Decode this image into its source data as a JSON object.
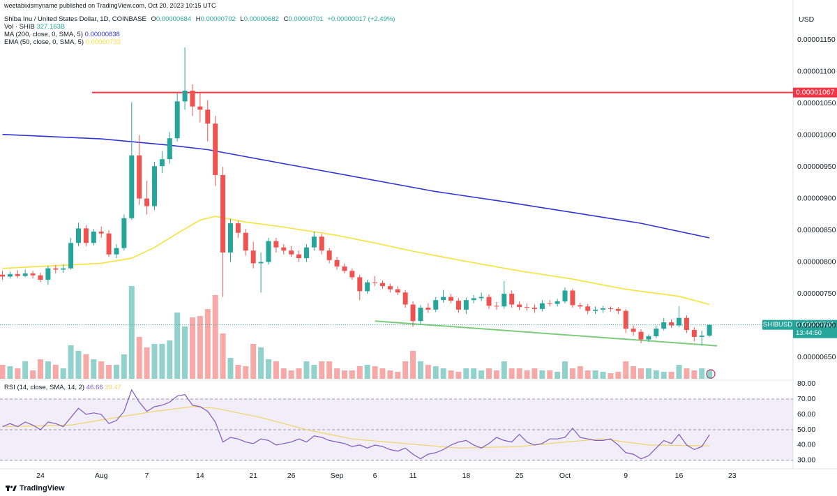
{
  "header": {
    "published": "weetabixismyname published on TradingView.com, Oct 20, 2023 10:15 UTC",
    "symbol": "Shiba Inu / United States Dollar, 1D, COINBASE",
    "ohlc_legend": [
      {
        "key": "O",
        "value": "0.00000684"
      },
      {
        "key": "H",
        "value": "0.00000702"
      },
      {
        "key": "L",
        "value": "0.00000682"
      },
      {
        "key": "C",
        "value": "0.00000701"
      }
    ],
    "change": "+0.00000017 (+2.49%)"
  },
  "chart_data": {
    "type": "candlestick",
    "y_unit": "USD",
    "up_color": "#26a69a",
    "down_color": "#ef5350",
    "xlim": [
      "2023-07-19",
      "2023-10-31"
    ],
    "xticks": [
      {
        "value": "2023-07-24",
        "label": "24"
      },
      {
        "value": "2023-08-01",
        "label": "Aug"
      },
      {
        "value": "2023-08-07",
        "label": "7"
      },
      {
        "value": "2023-08-14",
        "label": "14"
      },
      {
        "value": "2023-08-21",
        "label": "21"
      },
      {
        "value": "2023-08-26",
        "label": "26"
      },
      {
        "value": "2023-09-01",
        "label": "Sep"
      },
      {
        "value": "2023-09-06",
        "label": "6"
      },
      {
        "value": "2023-09-11",
        "label": "11"
      },
      {
        "value": "2023-09-18",
        "label": "18"
      },
      {
        "value": "2023-09-25",
        "label": "25"
      },
      {
        "value": "2023-10-01",
        "label": "Oct"
      },
      {
        "value": "2023-10-09",
        "label": "9"
      },
      {
        "value": "2023-10-16",
        "label": "16"
      },
      {
        "value": "2023-10-23",
        "label": "23"
      }
    ],
    "ylim": [
      6.16e-06,
      1.193e-05
    ],
    "yticks": [
      {
        "value": 6.5e-06,
        "label": "0.00000650"
      },
      {
        "value": 7e-06,
        "label": "0.00000700"
      },
      {
        "value": 7.5e-06,
        "label": "0.00000750"
      },
      {
        "value": 8e-06,
        "label": "0.00000800"
      },
      {
        "value": 8.5e-06,
        "label": "0.00000850"
      },
      {
        "value": 9e-06,
        "label": "0.00000900"
      },
      {
        "value": 9.5e-06,
        "label": "0.00000950"
      },
      {
        "value": 1e-05,
        "label": "0.00001000"
      },
      {
        "value": 1.05e-05,
        "label": "0.00001050"
      },
      {
        "value": 1.1e-05,
        "label": "0.00001100"
      },
      {
        "value": 1.15e-05,
        "label": "0.00001150"
      }
    ],
    "x": [
      "2023-07-19",
      "2023-07-20",
      "2023-07-21",
      "2023-07-22",
      "2023-07-23",
      "2023-07-24",
      "2023-07-25",
      "2023-07-26",
      "2023-07-27",
      "2023-07-28",
      "2023-07-29",
      "2023-07-30",
      "2023-07-31",
      "2023-08-01",
      "2023-08-02",
      "2023-08-03",
      "2023-08-04",
      "2023-08-05",
      "2023-08-06",
      "2023-08-07",
      "2023-08-08",
      "2023-08-09",
      "2023-08-10",
      "2023-08-11",
      "2023-08-12",
      "2023-08-13",
      "2023-08-14",
      "2023-08-15",
      "2023-08-16",
      "2023-08-17",
      "2023-08-18",
      "2023-08-19",
      "2023-08-20",
      "2023-08-21",
      "2023-08-22",
      "2023-08-23",
      "2023-08-24",
      "2023-08-25",
      "2023-08-26",
      "2023-08-27",
      "2023-08-28",
      "2023-08-29",
      "2023-08-30",
      "2023-08-31",
      "2023-09-01",
      "2023-09-02",
      "2023-09-03",
      "2023-09-04",
      "2023-09-05",
      "2023-09-06",
      "2023-09-07",
      "2023-09-08",
      "2023-09-09",
      "2023-09-10",
      "2023-09-11",
      "2023-09-12",
      "2023-09-13",
      "2023-09-14",
      "2023-09-15",
      "2023-09-16",
      "2023-09-17",
      "2023-09-18",
      "2023-09-19",
      "2023-09-20",
      "2023-09-21",
      "2023-09-22",
      "2023-09-23",
      "2023-09-24",
      "2023-09-25",
      "2023-09-26",
      "2023-09-27",
      "2023-09-28",
      "2023-09-29",
      "2023-09-30",
      "2023-10-01",
      "2023-10-02",
      "2023-10-03",
      "2023-10-04",
      "2023-10-05",
      "2023-10-06",
      "2023-10-07",
      "2023-10-08",
      "2023-10-09",
      "2023-10-10",
      "2023-10-11",
      "2023-10-12",
      "2023-10-13",
      "2023-10-14",
      "2023-10-15",
      "2023-10-16",
      "2023-10-17",
      "2023-10-18",
      "2023-10-19",
      "2023-10-20"
    ],
    "ohlc": [
      [
        7.8e-06,
        7.86e-06,
        7.72e-06,
        7.77e-06
      ],
      [
        7.77e-06,
        7.85e-06,
        7.74e-06,
        7.81e-06
      ],
      [
        7.81e-06,
        7.87e-06,
        7.75e-06,
        7.78e-06
      ],
      [
        7.78e-06,
        7.88e-06,
        7.76e-06,
        7.82e-06
      ],
      [
        7.82e-06,
        7.86e-06,
        7.74e-06,
        7.79e-06
      ],
      [
        7.79e-06,
        7.83e-06,
        7.68e-06,
        7.72e-06
      ],
      [
        7.72e-06,
        7.94e-06,
        7.64e-06,
        7.9e-06
      ],
      [
        7.9e-06,
        7.95e-06,
        7.82e-06,
        7.88e-06
      ],
      [
        7.88e-06,
        7.96e-06,
        7.83e-06,
        7.9e-06
      ],
      [
        7.9e-06,
        8.38e-06,
        7.88e-06,
        8.3e-06
      ],
      [
        8.3e-06,
        8.62e-06,
        8.25e-06,
        8.53e-06
      ],
      [
        8.53e-06,
        8.58e-06,
        8.25e-06,
        8.3e-06
      ],
      [
        8.3e-06,
        8.52e-06,
        8.26e-06,
        8.48e-06
      ],
      [
        8.48e-06,
        8.56e-06,
        8.38e-06,
        8.45e-06
      ],
      [
        8.45e-06,
        8.5e-06,
        8.08e-06,
        8.12e-06
      ],
      [
        8.12e-06,
        8.28e-06,
        8.06e-06,
        8.22e-06
      ],
      [
        8.22e-06,
        8.75e-06,
        8.18e-06,
        8.69e-06
      ],
      [
        8.69e-06,
        1.052e-05,
        8.66e-06,
        9.68e-06
      ],
      [
        9.68e-06,
        1e-05,
        8.9e-06,
        9e-06
      ],
      [
        9e-06,
        9.28e-06,
        8.75e-06,
        8.88e-06
      ],
      [
        8.88e-06,
        9.58e-06,
        8.82e-06,
        9.51e-06
      ],
      [
        9.51e-06,
        9.75e-06,
        9.4e-06,
        9.62e-06
      ],
      [
        9.62e-06,
        1.005e-05,
        9.55e-06,
        9.95e-06
      ],
      [
        9.95e-06,
        1.066e-05,
        9.9e-06,
        1.053e-05
      ],
      [
        1.053e-05,
        1.138e-05,
        1.04e-05,
        1.07e-05
      ],
      [
        1.07e-05,
        1.08e-05,
        1.03e-05,
        1.045e-05
      ],
      [
        1.045e-05,
        1.068e-05,
        1.02e-05,
        1.04e-05
      ],
      [
        1.04e-05,
        1.055e-05,
        9.9e-06,
        1.018e-05
      ],
      [
        1.018e-05,
        1.03e-05,
        9.2e-06,
        9.37e-06
      ],
      [
        9.37e-06,
        9.5e-06,
        7.45e-06,
        8.15e-06
      ],
      [
        8.15e-06,
        8.68e-06,
        8e-06,
        8.61e-06
      ],
      [
        8.61e-06,
        8.65e-06,
        8.38e-06,
        8.46e-06
      ],
      [
        8.46e-06,
        8.52e-06,
        8.1e-06,
        8.18e-06
      ],
      [
        8.18e-06,
        8.32e-06,
        7.9e-06,
        7.98e-06
      ],
      [
        7.98e-06,
        8.15e-06,
        7.52e-06,
        8e-06
      ],
      [
        8e-06,
        8.38e-06,
        7.96e-06,
        8.33e-06
      ],
      [
        8.33e-06,
        8.38e-06,
        8.15e-06,
        8.23e-06
      ],
      [
        8.23e-06,
        8.28e-06,
        8.12e-06,
        8.18e-06
      ],
      [
        8.18e-06,
        8.25e-06,
        8.08e-06,
        8.12e-06
      ],
      [
        8.12e-06,
        8.18e-06,
        8e-06,
        8.06e-06
      ],
      [
        8.06e-06,
        8.28e-06,
        8e-06,
        8.23e-06
      ],
      [
        8.23e-06,
        8.48e-06,
        8.18e-06,
        8.4e-06
      ],
      [
        8.4e-06,
        8.44e-06,
        8.12e-06,
        8.18e-06
      ],
      [
        8.18e-06,
        8.22e-06,
        7.98e-06,
        8.03e-06
      ],
      [
        8.03e-06,
        8.08e-06,
        7.88e-06,
        7.93e-06
      ],
      [
        7.93e-06,
        7.98e-06,
        7.82e-06,
        7.86e-06
      ],
      [
        7.86e-06,
        7.9e-06,
        7.72e-06,
        7.76e-06
      ],
      [
        7.76e-06,
        7.8e-06,
        7.4e-06,
        7.54e-06
      ],
      [
        7.54e-06,
        7.72e-06,
        7.5e-06,
        7.68e-06
      ],
      [
        7.68e-06,
        7.78e-06,
        7.62e-06,
        7.67e-06
      ],
      [
        7.67e-06,
        7.71e-06,
        7.58e-06,
        7.62e-06
      ],
      [
        7.62e-06,
        7.66e-06,
        7.52e-06,
        7.57e-06
      ],
      [
        7.57e-06,
        7.62e-06,
        7.48e-06,
        7.52e-06
      ],
      [
        7.52e-06,
        7.56e-06,
        7.28e-06,
        7.33e-06
      ],
      [
        7.33e-06,
        7.38e-06,
        6.98e-06,
        7.07e-06
      ],
      [
        7.07e-06,
        7.32e-06,
        7.03e-06,
        7.28e-06
      ],
      [
        7.28e-06,
        7.35e-06,
        7.2e-06,
        7.25e-06
      ],
      [
        7.25e-06,
        7.45e-06,
        7.21e-06,
        7.4e-06
      ],
      [
        7.4e-06,
        7.56e-06,
        7.36e-06,
        7.45e-06
      ],
      [
        7.45e-06,
        7.5e-06,
        7.35e-06,
        7.39e-06
      ],
      [
        7.39e-06,
        7.43e-06,
        7.2e-06,
        7.25e-06
      ],
      [
        7.25e-06,
        7.44e-06,
        7.18e-06,
        7.4e-06
      ],
      [
        7.4e-06,
        7.48e-06,
        7.35e-06,
        7.43e-06
      ],
      [
        7.43e-06,
        7.52e-06,
        7.38e-06,
        7.45e-06
      ],
      [
        7.45e-06,
        7.49e-06,
        7.26e-06,
        7.31e-06
      ],
      [
        7.31e-06,
        7.37e-06,
        7.25e-06,
        7.3e-06
      ],
      [
        7.3e-06,
        7.7e-06,
        7.26e-06,
        7.5e-06
      ],
      [
        7.5e-06,
        7.55e-06,
        7.28e-06,
        7.33e-06
      ],
      [
        7.33e-06,
        7.38e-06,
        7.24e-06,
        7.29e-06
      ],
      [
        7.29e-06,
        7.35e-06,
        7.23e-06,
        7.28e-06
      ],
      [
        7.28e-06,
        7.33e-06,
        7.2e-06,
        7.26e-06
      ],
      [
        7.26e-06,
        7.4e-06,
        7.22e-06,
        7.35e-06
      ],
      [
        7.35e-06,
        7.4e-06,
        7.3e-06,
        7.34e-06
      ],
      [
        7.34e-06,
        7.42e-06,
        7.3e-06,
        7.38e-06
      ],
      [
        7.38e-06,
        7.6e-06,
        7.35e-06,
        7.55e-06
      ],
      [
        7.55e-06,
        7.58e-06,
        7.28e-06,
        7.32e-06
      ],
      [
        7.32e-06,
        7.36e-06,
        7.26e-06,
        7.3e-06
      ],
      [
        7.3e-06,
        7.34e-06,
        7.18e-06,
        7.23e-06
      ],
      [
        7.23e-06,
        7.3e-06,
        7.18e-06,
        7.25e-06
      ],
      [
        7.25e-06,
        7.31e-06,
        7.2e-06,
        7.27e-06
      ],
      [
        7.27e-06,
        7.3e-06,
        7.22e-06,
        7.26e-06
      ],
      [
        7.26e-06,
        7.29e-06,
        7.18e-06,
        7.23e-06
      ],
      [
        7.23e-06,
        7.26e-06,
        6.88e-06,
        6.95e-06
      ],
      [
        6.95e-06,
        7e-06,
        6.84e-06,
        6.9e-06
      ],
      [
        6.9e-06,
        6.94e-06,
        6.72e-06,
        6.78e-06
      ],
      [
        6.78e-06,
        6.86e-06,
        6.74e-06,
        6.83e-06
      ],
      [
        6.83e-06,
        7e-06,
        6.8e-06,
        6.95e-06
      ],
      [
        6.95e-06,
        7.12e-06,
        6.92e-06,
        7.05e-06
      ],
      [
        7.05e-06,
        7.1e-06,
        6.96e-06,
        7e-06
      ],
      [
        7e-06,
        7.3e-06,
        6.97e-06,
        7.12e-06
      ],
      [
        7.12e-06,
        7.16e-06,
        6.88e-06,
        6.93e-06
      ],
      [
        6.93e-06,
        6.97e-06,
        6.75e-06,
        6.82e-06
      ],
      [
        6.82e-06,
        6.92e-06,
        6.68e-06,
        6.84e-06
      ],
      [
        6.84e-06,
        7.02e-06,
        6.82e-06,
        7.01e-06
      ]
    ],
    "volume_name": "Vol · SHIB",
    "volume_label": "327.163B",
    "volume": [
      540000000000.0,
      486000000000.0,
      405000000000.0,
      675000000000.0,
      324000000000.0,
      756000000000.0,
      675000000000.0,
      540000000000.0,
      405000000000.0,
      1296000000000.0,
      1080000000000.0,
      945000000000.0,
      756000000000.0,
      675000000000.0,
      540000000000.0,
      540000000000.0,
      945000000000.0,
      3591000000000.0,
      1620000000000.0,
      1215000000000.0,
      1350000000000.0,
      1350000000000.0,
      1485000000000.0,
      2565000000000.0,
      2025000000000.0,
      2376000000000.0,
      2430000000000.0,
      2700000000000.0,
      3240000000000.0,
      1755000000000.0,
      810000000000.0,
      540000000000.0,
      486000000000.0,
      1350000000000.0,
      1215000000000.0,
      756000000000.0,
      675000000000.0,
      405000000000.0,
      324000000000.0,
      405000000000.0,
      675000000000.0,
      540000000000.0,
      675000000000.0,
      675000000000.0,
      405000000000.0,
      324000000000.0,
      324000000000.0,
      486000000000.0,
      540000000000.0,
      486000000000.0,
      405000000000.0,
      324000000000.0,
      270000000000.0,
      675000000000.0,
      1080000000000.0,
      675000000000.0,
      540000000000.0,
      486000000000.0,
      405000000000.0,
      324000000000.0,
      270000000000.0,
      405000000000.0,
      405000000000.0,
      324000000000.0,
      405000000000.0,
      324000000000.0,
      675000000000.0,
      405000000000.0,
      405000000000.0,
      324000000000.0,
      405000000000.0,
      324000000000.0,
      324000000000.0,
      270000000000.0,
      675000000000.0,
      405000000000.0,
      486000000000.0,
      324000000000.0,
      324000000000.0,
      270000000000.0,
      216000000000.0,
      270000000000.0,
      675000000000.0,
      486000000000.0,
      405000000000.0,
      405000000000.0,
      324000000000.0,
      270000000000.0,
      270000000000.0,
      540000000000.0,
      405000000000.0,
      324000000000.0,
      405000000000.0,
      327163000000.0
    ],
    "overlays": [
      {
        "name": "MA (200, close, 0, SMA, 5)",
        "color": "#3033d6",
        "value_label": "0.00000838",
        "x": [
          "2023-07-19",
          "2023-08-01",
          "2023-08-10",
          "2023-08-15",
          "2023-08-25",
          "2023-09-04",
          "2023-09-14",
          "2023-09-23",
          "2023-10-02",
          "2023-10-11",
          "2023-10-20"
        ],
        "values": [
          1.001e-05,
          9.94e-06,
          9.84e-06,
          9.77e-06,
          9.55e-06,
          9.33e-06,
          9.11e-06,
          8.95e-06,
          8.78e-06,
          8.61e-06,
          8.38e-06
        ]
      },
      {
        "name": "EMA (50, close, 0, SMA, 5)",
        "color": "#f5e23b",
        "value_label": "0.00000733",
        "x": [
          "2023-07-19",
          "2023-08-01",
          "2023-08-05",
          "2023-08-08",
          "2023-08-11",
          "2023-08-14",
          "2023-08-16",
          "2023-08-20",
          "2023-08-25",
          "2023-09-01",
          "2023-09-06",
          "2023-09-11",
          "2023-09-18",
          "2023-09-25",
          "2023-10-02",
          "2023-10-09",
          "2023-10-16",
          "2023-10-20"
        ],
        "values": [
          7.9e-06,
          7.98e-06,
          8.06e-06,
          8.23e-06,
          8.45e-06,
          8.66e-06,
          8.72e-06,
          8.63e-06,
          8.55e-06,
          8.42e-06,
          8.3e-06,
          8.17e-06,
          8.01e-06,
          7.86e-06,
          7.73e-06,
          7.57e-06,
          7.46e-06,
          7.33e-06
        ]
      }
    ],
    "hline": {
      "value": 1.067e-05,
      "label": "0.00001067",
      "color": "#f23645"
    },
    "trendline": {
      "x": [
        "2023-09-06",
        "2023-10-21"
      ],
      "values": [
        7.07e-06,
        6.68e-06
      ],
      "color": "#7ccc7c"
    },
    "last_price": {
      "symbol": "SHIBUSD",
      "label": "0.00000701",
      "countdown": "13:44:50"
    },
    "rsi": {
      "name": "RSI (14, close, SMA, 14, 2)",
      "color": "#7e57c2",
      "value_label": "46.66",
      "ylim": [
        24.5,
        81.4
      ],
      "yticks": [
        {
          "value": 30,
          "label": "30.00"
        },
        {
          "value": 40,
          "label": "40.00"
        },
        {
          "value": 50,
          "label": "50.00"
        },
        {
          "value": 60,
          "label": "60.00"
        },
        {
          "value": 70,
          "label": "70.00"
        },
        {
          "value": 80,
          "label": "80.00"
        }
      ],
      "levels": [
        70,
        50,
        30
      ],
      "values": [
        52,
        54,
        52,
        55,
        53,
        50,
        55,
        54,
        52,
        58,
        64,
        60,
        61,
        60,
        54,
        56,
        62,
        76,
        68,
        62,
        65,
        66,
        68,
        72,
        73,
        66,
        65,
        62,
        55,
        42,
        45,
        44,
        42,
        41,
        44,
        43,
        40,
        41,
        42,
        44,
        42,
        46,
        45,
        43,
        42,
        41,
        39,
        40,
        38,
        40,
        39,
        37,
        36,
        38,
        34,
        31,
        34,
        35,
        37,
        40,
        42,
        43,
        40,
        38,
        41,
        45,
        43,
        42,
        47,
        42,
        40,
        41,
        44,
        44,
        45,
        51,
        45,
        44,
        43,
        43,
        44,
        40,
        35,
        34,
        31,
        33,
        38,
        43,
        41,
        47,
        40,
        37,
        39,
        46.66
      ],
      "ma": {
        "color": "#f2d36b",
        "value_label": "39.47",
        "x": [
          "2023-07-19",
          "2023-07-28",
          "2023-08-03",
          "2023-08-08",
          "2023-08-13",
          "2023-08-16",
          "2023-08-22",
          "2023-08-28",
          "2023-09-03",
          "2023-09-10",
          "2023-09-17",
          "2023-09-25",
          "2023-10-01",
          "2023-10-06",
          "2023-10-12",
          "2023-10-20"
        ],
        "values": [
          52,
          53,
          58,
          62,
          65,
          64,
          58,
          50,
          44,
          41,
          38,
          39,
          42,
          44,
          40,
          39.47
        ]
      }
    }
  },
  "footer": {
    "brand": "TradingView"
  }
}
